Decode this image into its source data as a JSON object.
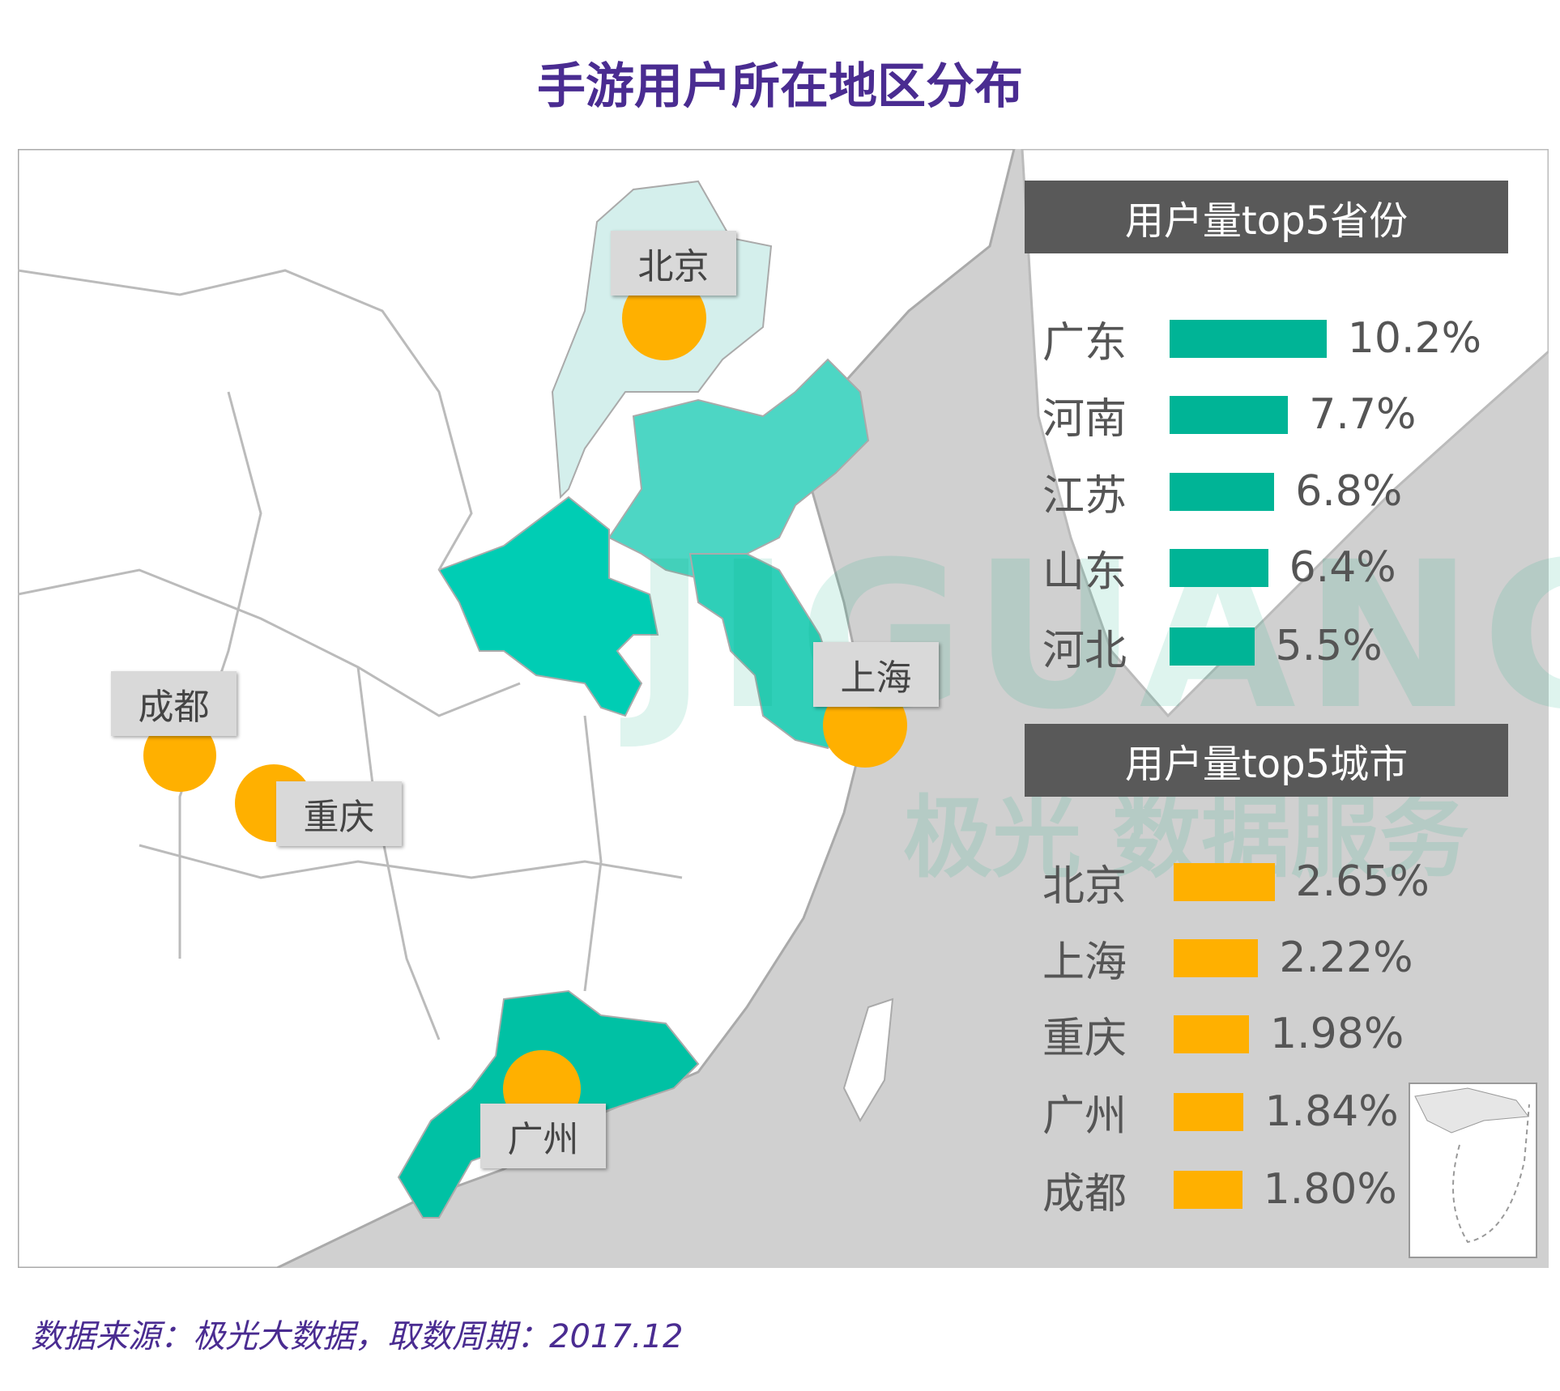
{
  "title": "手游用户所在地区分布",
  "colors": {
    "province_bar": "#00b496",
    "city_bar": "#ffb000",
    "title": "#4a2c91",
    "header_bg": "#595959",
    "sea": "#d0d0d0"
  },
  "watermark": {
    "brand": "JIGUANG",
    "tagline": "极光 数据服务"
  },
  "provinces": {
    "header": "用户量top5省份",
    "items": [
      {
        "name": "广东",
        "value": "10.2%",
        "pct": 10.2
      },
      {
        "name": "河南",
        "value": "7.7%",
        "pct": 7.7
      },
      {
        "name": "江苏",
        "value": "6.8%",
        "pct": 6.8
      },
      {
        "name": "山东",
        "value": "6.4%",
        "pct": 6.4
      },
      {
        "name": "河北",
        "value": "5.5%",
        "pct": 5.5
      }
    ]
  },
  "cities": {
    "header": "用户量top5城市",
    "items": [
      {
        "name": "北京",
        "value": "2.65%",
        "pct": 2.65
      },
      {
        "name": "上海",
        "value": "2.22%",
        "pct": 2.22
      },
      {
        "name": "重庆",
        "value": "1.98%",
        "pct": 1.98
      },
      {
        "name": "广州",
        "value": "1.84%",
        "pct": 1.84
      },
      {
        "name": "成都",
        "value": "1.80%",
        "pct": 1.8
      }
    ]
  },
  "map_labels": [
    "北京",
    "上海",
    "成都",
    "重庆",
    "广州"
  ],
  "footer": "数据来源：极光大数据，取数周期：2017.12"
}
